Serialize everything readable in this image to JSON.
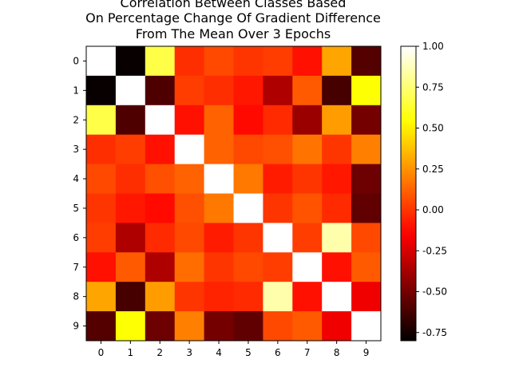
{
  "chart_data": {
    "type": "heatmap",
    "title": [
      "Correlation Between Classes Based",
      "On Percentage Change Of Gradient Difference",
      "From The Mean Over 3 Epochs"
    ],
    "xlabel": "",
    "ylabel": "",
    "x_categories": [
      "0",
      "1",
      "2",
      "3",
      "4",
      "5",
      "6",
      "7",
      "8",
      "9"
    ],
    "y_categories": [
      "0",
      "1",
      "2",
      "3",
      "4",
      "5",
      "6",
      "7",
      "8",
      "9"
    ],
    "values": [
      [
        1.0,
        -0.78,
        0.67,
        -0.02,
        0.05,
        0.0,
        0.02,
        -0.1,
        0.3,
        -0.58
      ],
      [
        -0.78,
        1.0,
        -0.6,
        0.02,
        -0.02,
        -0.08,
        -0.35,
        0.1,
        -0.62,
        0.55
      ],
      [
        0.67,
        -0.6,
        1.0,
        -0.1,
        0.12,
        -0.12,
        -0.03,
        -0.4,
        0.28,
        -0.5
      ],
      [
        -0.02,
        0.02,
        -0.1,
        1.0,
        0.12,
        0.05,
        0.07,
        0.17,
        0.0,
        0.2
      ],
      [
        0.05,
        -0.02,
        0.07,
        0.12,
        1.0,
        0.18,
        -0.07,
        0.0,
        -0.08,
        -0.52
      ],
      [
        0.0,
        -0.08,
        -0.12,
        0.07,
        0.18,
        1.0,
        0.0,
        0.08,
        -0.03,
        -0.55
      ],
      [
        0.02,
        -0.35,
        -0.03,
        0.05,
        -0.07,
        0.0,
        1.0,
        0.02,
        0.85,
        0.05
      ],
      [
        -0.1,
        0.1,
        -0.35,
        0.15,
        0.0,
        0.05,
        0.02,
        1.0,
        -0.1,
        0.1
      ],
      [
        0.3,
        -0.62,
        0.28,
        0.0,
        -0.05,
        -0.03,
        0.85,
        -0.1,
        1.0,
        -0.18
      ],
      [
        -0.58,
        0.55,
        -0.52,
        0.2,
        -0.5,
        -0.55,
        0.05,
        0.1,
        -0.18,
        1.0
      ]
    ],
    "colormap": "hot",
    "vmin": -0.8,
    "vmax": 1.0,
    "colorbar_ticks": [
      "-0.75",
      "-0.50",
      "-0.25",
      "0.00",
      "0.25",
      "0.50",
      "0.75",
      "1.00"
    ],
    "colorbar_tick_values": [
      -0.75,
      -0.5,
      -0.25,
      0.0,
      0.25,
      0.5,
      0.75,
      1.0
    ],
    "grid": false
  }
}
